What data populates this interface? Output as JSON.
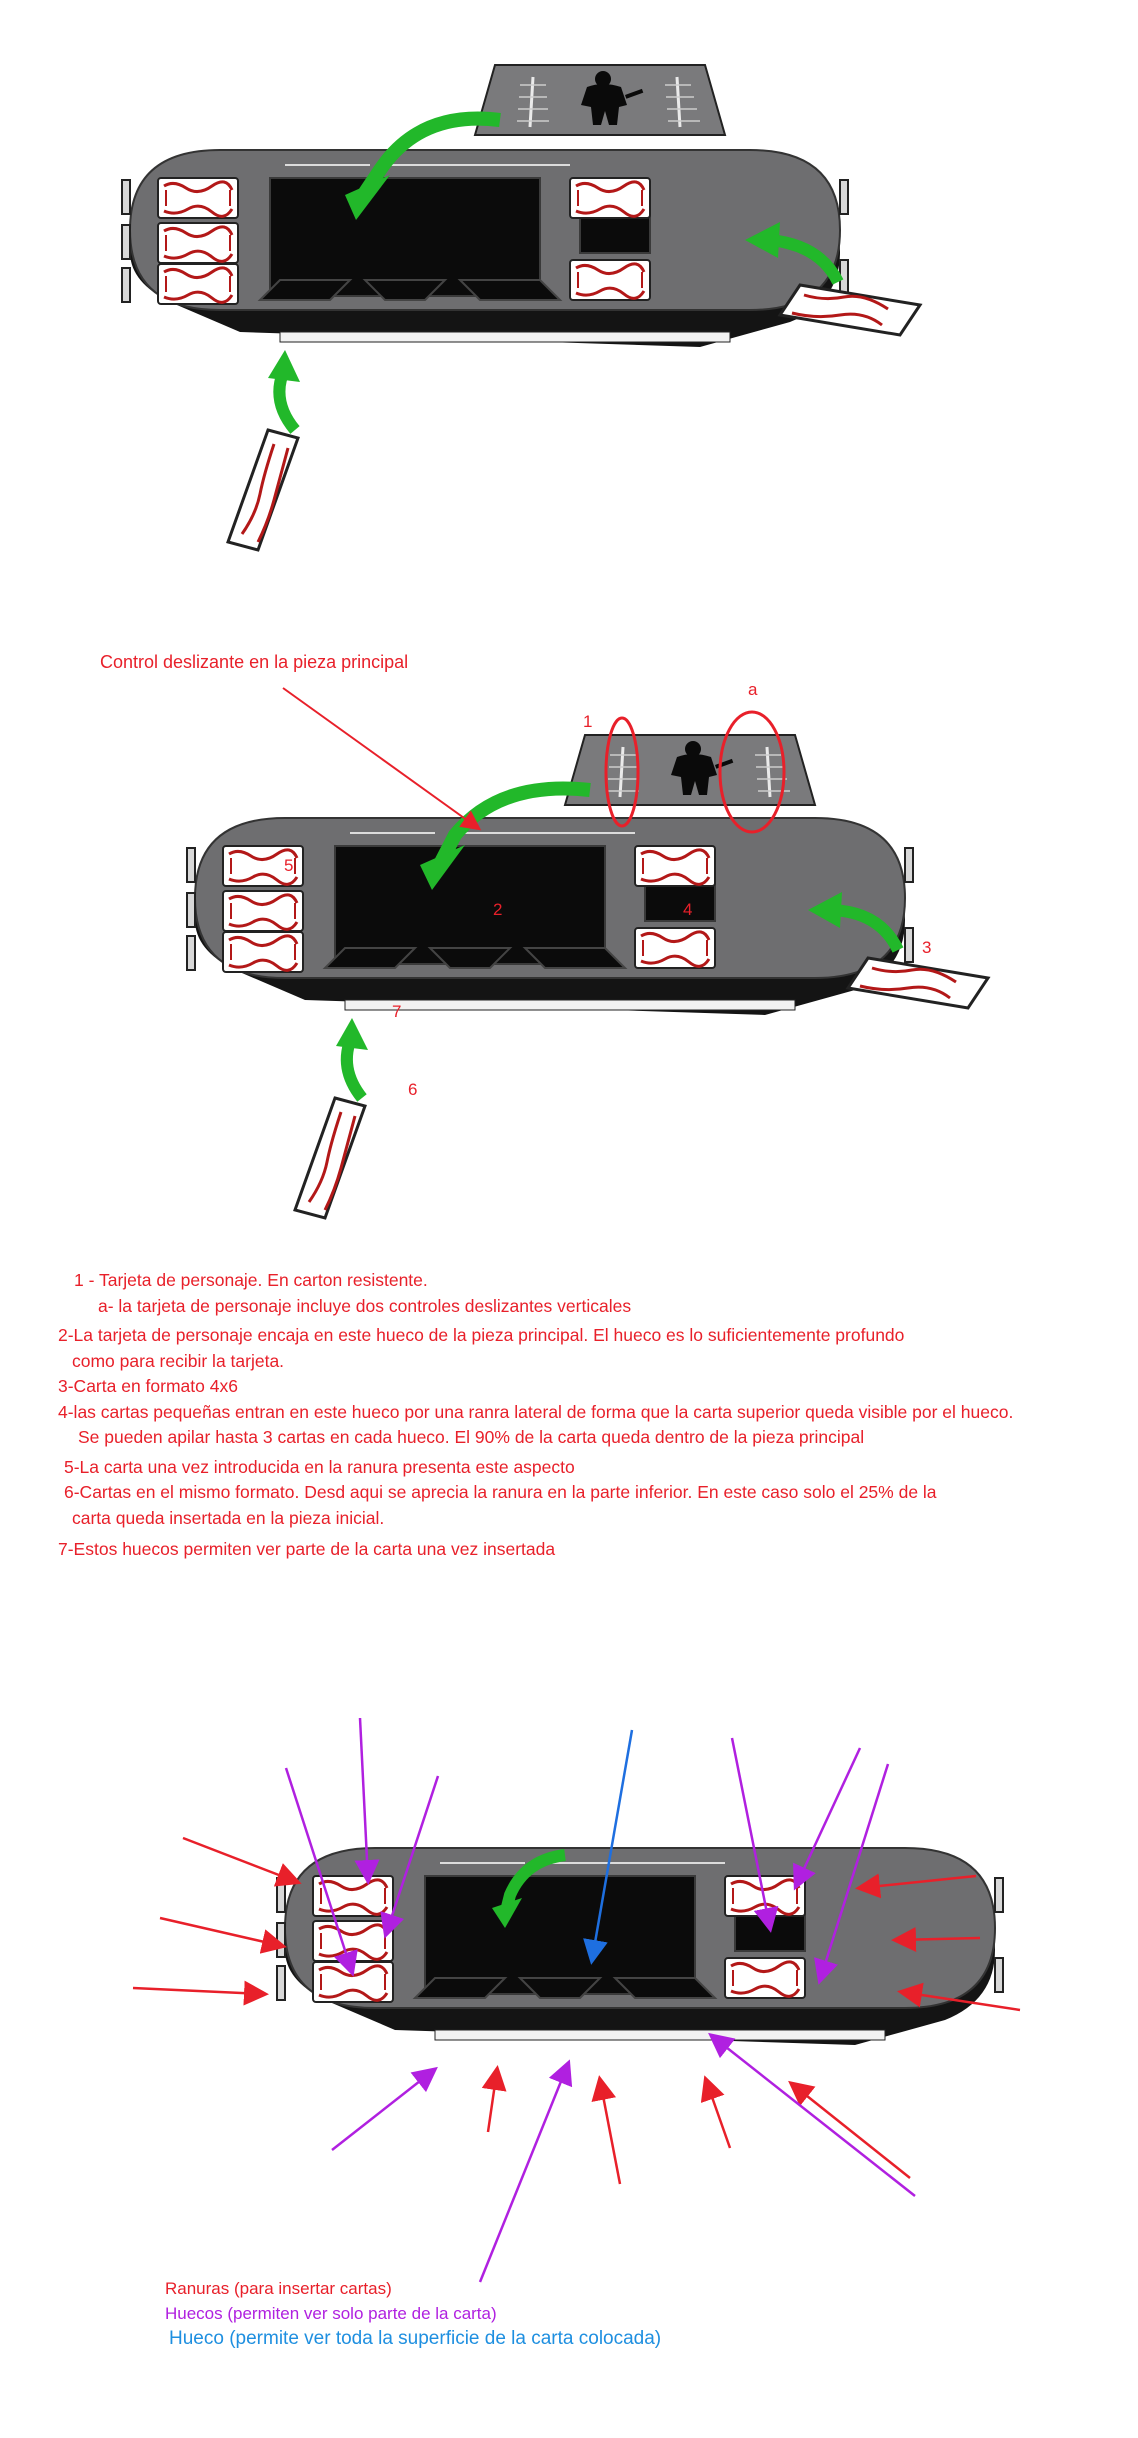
{
  "annotations": {
    "control_label": "Control deslizante en la pieza principal",
    "n1": "1",
    "na": "a",
    "n2": "2",
    "n3": "3",
    "n4": "4",
    "n5": "5",
    "n6": "6",
    "n7": "7"
  },
  "notes": [
    "1 - Tarjeta de personaje. En carton resistente.",
    "a- la tarjeta de personaje incluye dos controles deslizantes verticales",
    "2-La tarjeta de personaje encaja en este hueco de la pieza principal. El hueco es lo suficientemente profundo",
    "como para recibir la tarjeta.",
    "3-Carta en formato  4x6",
    "4-las cartas pequeñas entran en este hueco por una ranra lateral de forma que la carta superior queda visible por el hueco.",
    "Se pueden apilar hasta 3 cartas en cada hueco. El 90% de la carta queda dentro de la pieza principal",
    "5-La carta una vez introducida en la ranura presenta este aspecto",
    "6-Cartas en el mismo formato. Desd aqui se aprecia la ranura en la parte inferior. En este caso solo el 25% de la",
    "carta queda insertada en la pieza inicial.",
    "7-Estos huecos permiten ver parte de la carta una vez insertada"
  ],
  "legend": [
    {
      "text": "Ranuras (para insertar cartas)",
      "color": "#e8202a"
    },
    {
      "text": "Huecos (permiten ver solo parte de la carta)",
      "color": "#b020e0"
    },
    {
      "text": "Hueco (permite ver toda la superficie de la carta colocada)",
      "color": "#1e8fe0"
    }
  ],
  "colors": {
    "board_top": "#6e6e70",
    "board_base": "#141414",
    "arrow_green": "#22b82a",
    "annot_red": "#e8202a",
    "annot_purple": "#b020e0",
    "annot_blue": "#1e6fe0"
  }
}
